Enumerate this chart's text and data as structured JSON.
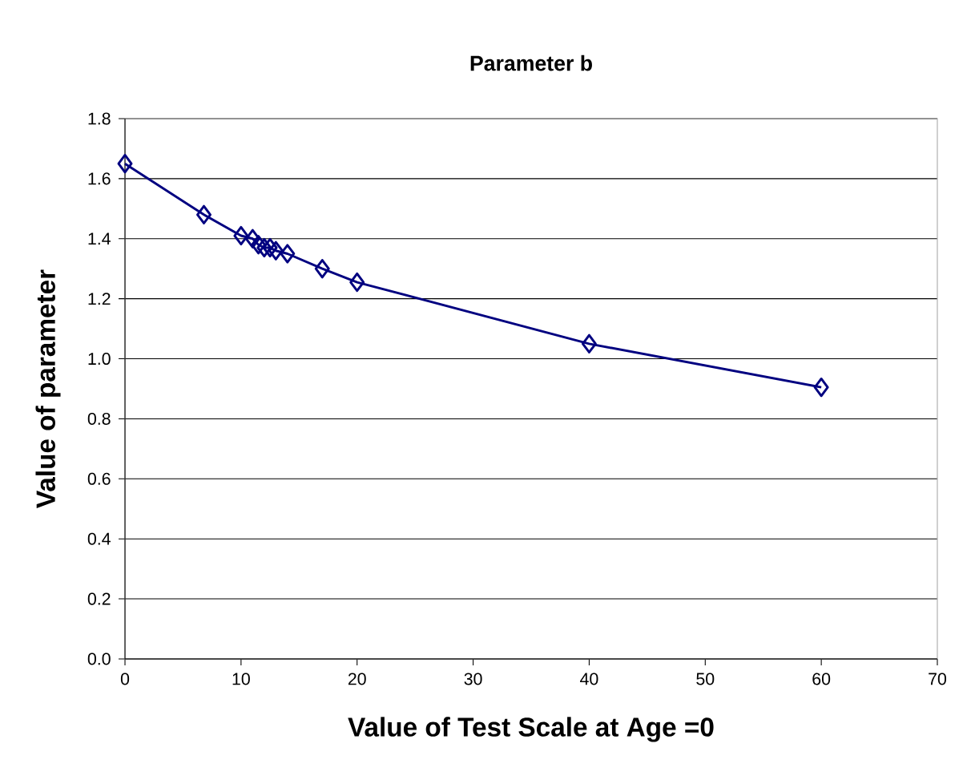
{
  "chart_data": {
    "type": "line",
    "title": "Parameter b",
    "xlabel": "Value of Test Scale at Age =0",
    "ylabel": "Value of parameter",
    "x": [
      0,
      6.8,
      10,
      11,
      11.5,
      12,
      12.3,
      12.5,
      13,
      14,
      17,
      20,
      40,
      60
    ],
    "series": [
      {
        "color": "#000080",
        "values": [
          1.65,
          1.48,
          1.41,
          1.4,
          1.38,
          1.37,
          null,
          1.37,
          1.36,
          1.35,
          1.3,
          1.255,
          1.05,
          0.905
        ]
      }
    ],
    "xlim": [
      0,
      70
    ],
    "xticks": [
      0,
      10,
      20,
      30,
      40,
      50,
      60,
      70
    ],
    "ylim": [
      0,
      1.8
    ],
    "yticks": [
      {
        "value": 0,
        "label": "0.0"
      },
      {
        "value": 0.2,
        "label": "0.2"
      },
      {
        "value": 0.4,
        "label": "0.4"
      },
      {
        "value": 0.6,
        "label": "0.6"
      },
      {
        "value": 0.8,
        "label": "0.8"
      },
      {
        "value": 1.0,
        "label": "1.0"
      },
      {
        "value": 1.2,
        "label": "1.2"
      },
      {
        "value": 1.4,
        "label": "1.4"
      },
      {
        "value": 1.6,
        "label": "1.6"
      },
      {
        "value": 1.8,
        "label": "1.8"
      }
    ],
    "grid": "y",
    "marker": "diamond",
    "line_style": "solid"
  }
}
